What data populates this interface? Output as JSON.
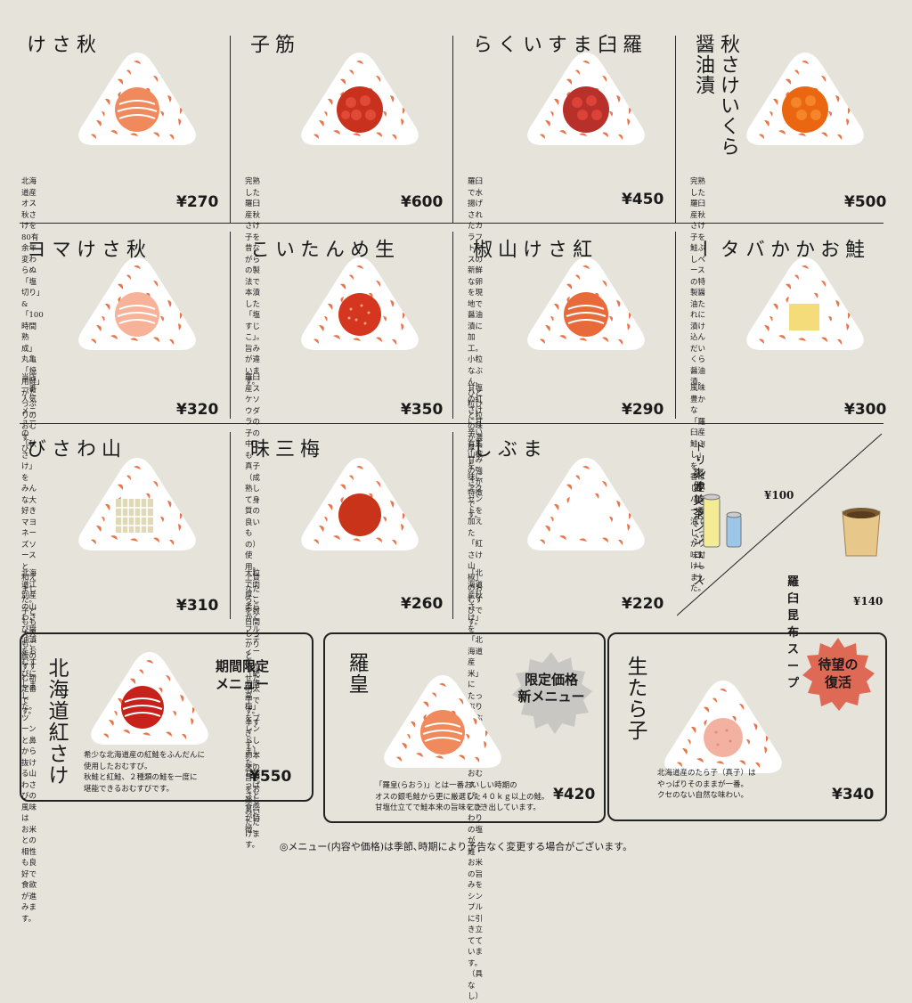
{
  "menu": [
    {
      "name": "秋さけ",
      "desc": "北海道産オス秋さけを80有余年\n変わらぬ「塩切り」&「100時間熟成」\n丸亀「焼用鮭」がたっぷりのおむすび。",
      "price": "¥270"
    },
    {
      "name": "筋子",
      "desc": "完熟した羅臼産秋さけ子を\n昔ながらの製法で本漬した「塩すじこ」。\n旨みが違います。",
      "price": "¥600"
    },
    {
      "name": "羅臼ますいくら",
      "desc": "羅臼で水揚げされたカラフトマスの\n新鮮な卵を現地で醤油漬に加工。\n小粒なぶん、ひと粒ひと粒の味が濃厚で\n甘みの強さが特徴です。",
      "price": "¥450"
    },
    {
      "name": "秋さけいくら醤油漬",
      "desc": "完熟した羅臼産秋さけ子を\n鮭ぶしベースの特製醤油たれに\n漬け込んだいくら醤油漬。",
      "price": "¥500"
    },
    {
      "name": "秋さけマヨ",
      "desc": "当店一番人気メニューの「秋さけ」を\nみんな大好きマヨネーズソースと\n和えました。\n子どもも大人もご飯のすすむ新定番です。",
      "price": "¥320"
    },
    {
      "name": "生めんたいこ",
      "desc": "羅臼産スケソウダラの子の中でも\n真子（成熟して身質の良いもの）使用。\n上質なたらこを数日間しっかりと\n寝かせた明太子です。辛すぎず、\n卵本来の旨みをお楽しみいただけます。",
      "price": "¥350"
    },
    {
      "name": "紅さけ山椒",
      "desc": "甘塩の紅さけに甘辛い有馬山椒を。\n味にアクセントを加えた\n「紅さけ山椒」のおむすびです。",
      "price": "¥290"
    },
    {
      "name": "鮭おかかバター",
      "desc": "風味豊かな「羅臼産鮭ぶし」を\n香ばしいバター醤油で\nしっかり味付けしました。",
      "price": "¥300"
    },
    {
      "name": "山わさび",
      "desc": "北海道江別産の山わさび醤油漬をおむすびにしました。\nツーンと鼻から抜ける山わさびの風味は\nお米との相性も良好で食欲が進みます。",
      "price": "¥310"
    },
    {
      "name": "梅三昧",
      "desc": "大粒で肉厚、柔らかくフルーティーな\n「紀州南高梅」をブレンドしました。\n甘酸っぱさと食感が特徴。",
      "price": "¥260"
    },
    {
      "name": "まぶし",
      "desc": "「北海道産秋さけ」を「北海道産米」に\nたっぷりまぶした亀太郎の定番おむすび。\nこだわりの塩が鮭・お米の旨みを\nシンプルに引き立てています。（具なし）",
      "price": "¥220"
    }
  ],
  "drinks": {
    "title": "ドリンク",
    "items": [
      "・爽健美茶",
      "・オレンジジュース"
    ],
    "price": "¥100"
  },
  "soup": {
    "name": "羅臼昆布スープ",
    "price": "¥140"
  },
  "special": [
    {
      "name": "北海道紅さけ",
      "tag": "期間限定\nメニュー",
      "desc": "希少な北海道産の紅鮭をふんだんに\n使用したおむすび。\n秋鮭と紅鮭、２種類の鮭を一度に\n堪能できるおむすびです。",
      "price": "¥550"
    },
    {
      "name": "羅皇",
      "tag": "限定価格\n新メニュー",
      "desc": "「羅皇(らおう)」とは一番おいしい時期の\nオスの銀毛鮭から更に厳選した４０ｋｇ以上の鮭。\n甘塩仕立てで鮭本来の旨味をひき出しています。",
      "price": "¥420"
    },
    {
      "name": "生たら子",
      "tag": "待望の\n復活",
      "desc": "北海道産のたら子（真子）は\nやっぱりそのままが一番。\nクセのない自然な味わい。",
      "price": "¥340"
    }
  ],
  "footer": "◎メニュー(内容や価格)は季節､時期により予告なく変更する場合がございます。",
  "colors": {
    "background": "#e6e3db",
    "fleck": "#e8764a",
    "salmon": "#f08a5d",
    "ikura": "#d93a2b",
    "tag_gray": "#c9c7c4",
    "tag_red": "#de6a55"
  }
}
